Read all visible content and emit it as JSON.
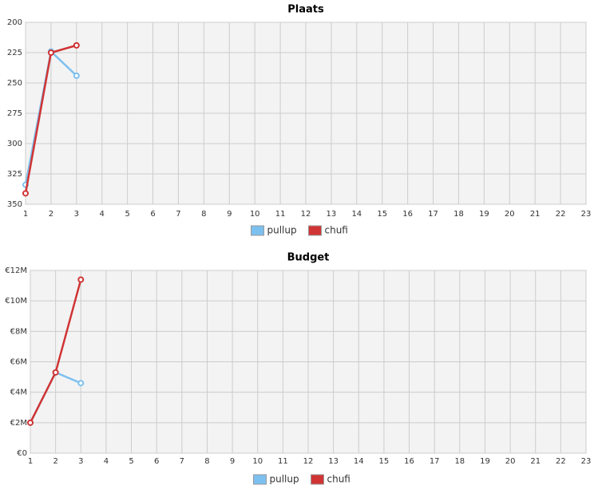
{
  "chart_data": [
    {
      "type": "line",
      "title": "Plaats",
      "x": [
        1,
        2,
        3
      ],
      "series": [
        {
          "name": "pullup",
          "color": "#7cc0f0",
          "values": [
            334,
            224,
            244
          ]
        },
        {
          "name": "chufi",
          "color": "#d03434",
          "values": [
            341,
            225,
            219
          ]
        }
      ],
      "xlim": [
        1,
        23
      ],
      "xticks": [
        1,
        2,
        3,
        4,
        5,
        6,
        7,
        8,
        9,
        10,
        11,
        12,
        13,
        14,
        15,
        16,
        17,
        18,
        19,
        20,
        21,
        22,
        23
      ],
      "ylim": [
        350,
        200
      ],
      "yticks": [
        200,
        225,
        250,
        275,
        300,
        325,
        350
      ],
      "grid": true,
      "legend": "bottom"
    },
    {
      "type": "line",
      "title": "Budget",
      "x": [
        1,
        2,
        3
      ],
      "series": [
        {
          "name": "pullup",
          "color": "#7cc0f0",
          "values": [
            2000000,
            5300000,
            4600000
          ]
        },
        {
          "name": "chufi",
          "color": "#d03434",
          "values": [
            2000000,
            5300000,
            11400000
          ]
        }
      ],
      "xlim": [
        1,
        23
      ],
      "xticks": [
        1,
        2,
        3,
        4,
        5,
        6,
        7,
        8,
        9,
        10,
        11,
        12,
        13,
        14,
        15,
        16,
        17,
        18,
        19,
        20,
        21,
        22,
        23
      ],
      "ylim": [
        0,
        12000000
      ],
      "yticks": [
        {
          "value": 0,
          "label": "€0"
        },
        {
          "value": 2000000,
          "label": "€2M"
        },
        {
          "value": 4000000,
          "label": "€4M"
        },
        {
          "value": 6000000,
          "label": "€6M"
        },
        {
          "value": 8000000,
          "label": "€8M"
        },
        {
          "value": 10000000,
          "label": "€10M"
        },
        {
          "value": 12000000,
          "label": "€12M"
        }
      ],
      "grid": true,
      "legend": "bottom"
    }
  ]
}
